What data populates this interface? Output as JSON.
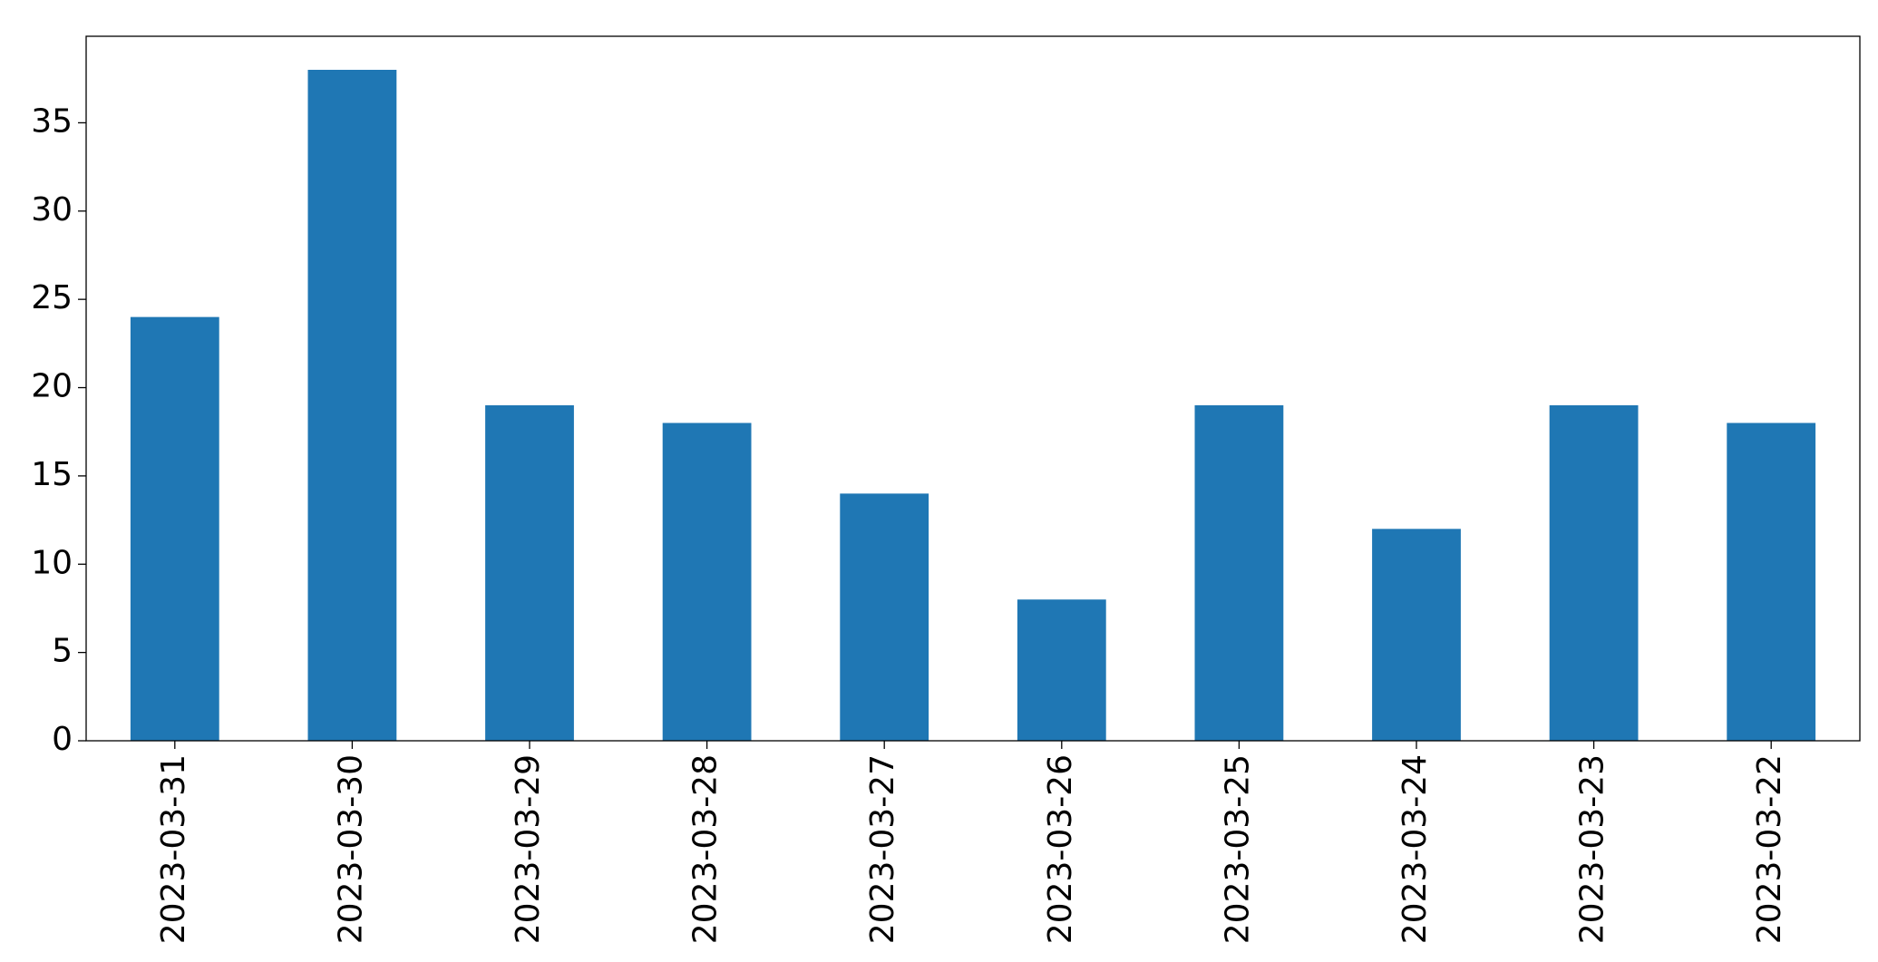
{
  "chart_data": {
    "type": "bar",
    "categories": [
      "2023-03-31",
      "2023-03-30",
      "2023-03-29",
      "2023-03-28",
      "2023-03-27",
      "2023-03-26",
      "2023-03-25",
      "2023-03-24",
      "2023-03-23",
      "2023-03-22"
    ],
    "values": [
      24,
      38,
      19,
      18,
      14,
      8,
      19,
      12,
      19,
      18
    ],
    "color": "#1f77b4",
    "ylim": [
      0,
      39.9
    ],
    "yticks": [
      0,
      5,
      10,
      15,
      20,
      25,
      30,
      35
    ],
    "grid": false
  }
}
